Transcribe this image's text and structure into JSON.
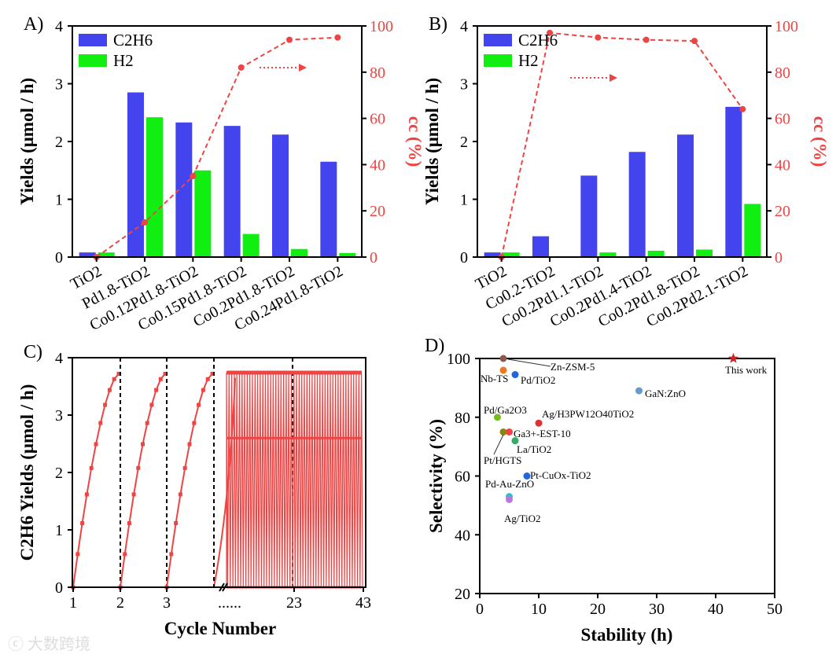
{
  "chart_data": [
    {
      "panel": "A)",
      "type": "bar",
      "ylabel": "Yields (μmol / h)",
      "y2label": "cc (%)",
      "ylim": [
        0,
        4
      ],
      "y2lim": [
        0,
        100
      ],
      "yticks": [
        "0",
        "1",
        "2",
        "3",
        "4"
      ],
      "y2ticks": [
        "0",
        "20",
        "40",
        "60",
        "80",
        "100"
      ],
      "categories": [
        "TiO2",
        "Pd1.8-TiO2",
        "Co0.12Pd1.8-TiO2",
        "Co0.15Pd1.8-TiO2",
        "Co0.2Pd1.8-TiO2",
        "Co0.24Pd1.8-TiO2"
      ],
      "series": [
        {
          "name": "C2H6",
          "color": "#4444ee",
          "values": [
            0.08,
            2.85,
            2.33,
            2.27,
            2.12,
            1.65
          ]
        },
        {
          "name": "H2",
          "color": "#11ee11",
          "values": [
            0.08,
            2.42,
            1.5,
            0.4,
            0.14,
            0.07
          ]
        },
        {
          "name": "cc",
          "type": "line",
          "axis": "right",
          "color": "#ee4444",
          "values": [
            0,
            15,
            35,
            82,
            94,
            95
          ]
        }
      ]
    },
    {
      "panel": "B)",
      "type": "bar",
      "ylabel": "Yields (μmol / h)",
      "y2label": "cc (%)",
      "ylim": [
        0,
        4
      ],
      "y2lim": [
        0,
        100
      ],
      "yticks": [
        "0",
        "1",
        "2",
        "3",
        "4"
      ],
      "y2ticks": [
        "0",
        "20",
        "40",
        "60",
        "80",
        "100"
      ],
      "categories": [
        "TiO2",
        "Co0.2-TiO2",
        "Co0.2Pd1.1-TiO2",
        "Co0.2Pd1.4-TiO2",
        "Co0.2Pd1.8-TiO2",
        "Co0.2Pd2.1-TiO2"
      ],
      "series": [
        {
          "name": "C2H6",
          "color": "#4444ee",
          "values": [
            0.08,
            0.36,
            1.41,
            1.82,
            2.12,
            2.6
          ]
        },
        {
          "name": "H2",
          "color": "#11ee11",
          "values": [
            0.08,
            0,
            0.08,
            0.11,
            0.13,
            0.92
          ]
        },
        {
          "name": "cc",
          "type": "line",
          "axis": "right",
          "color": "#ee4444",
          "values": [
            0,
            97,
            95,
            94,
            93.5,
            64
          ]
        }
      ]
    },
    {
      "panel": "C)",
      "type": "line",
      "xlabel": "Cycle Number",
      "ylabel": "C2H6 Yields (μmol / h)",
      "ylim": [
        0,
        4
      ],
      "yticks": [
        "0",
        "1",
        "2",
        "3",
        "4"
      ],
      "xticks": [
        "1",
        "2",
        "3",
        "......",
        "23",
        "43"
      ],
      "cycle_max": 3.72,
      "upper_cycle_max": 3.74,
      "lower_plateau": 2.6,
      "color": "#ee4444"
    },
    {
      "panel": "D)",
      "type": "scatter",
      "xlabel": "Stability (h)",
      "ylabel": "Selectivity (%)",
      "xlim": [
        0,
        50
      ],
      "ylim": [
        20,
        100
      ],
      "xticks": [
        "0",
        "10",
        "20",
        "30",
        "40",
        "50"
      ],
      "yticks": [
        "20",
        "40",
        "60",
        "80",
        "100"
      ],
      "points": [
        {
          "label": "Zn-ZSM-5",
          "x": 4,
          "y": 100,
          "color": "#8b5a4a"
        },
        {
          "label": "Nb-TS",
          "x": 4,
          "y": 96,
          "color": "#ee7722"
        },
        {
          "label": "Pd/TiO2",
          "x": 6,
          "y": 94.5,
          "color": "#2266dd"
        },
        {
          "label": "GaN:ZnO",
          "x": 27,
          "y": 89,
          "color": "#6699cc"
        },
        {
          "label": "Pd/Ga2O3",
          "x": 3,
          "y": 80,
          "color": "#77bb22"
        },
        {
          "label": "Ag/H3PW12O40TiO2",
          "x": 10,
          "y": 78,
          "color": "#dd3333"
        },
        {
          "label": "Pt/HGTS",
          "x": 4,
          "y": 75,
          "color": "#888811"
        },
        {
          "label": "Ga3+-EST-10",
          "x": 5,
          "y": 75,
          "color": "#ee4444"
        },
        {
          "label": "La/TiO2",
          "x": 6,
          "y": 72,
          "color": "#33aa66"
        },
        {
          "label": "Pt-CuOx-TiO2",
          "x": 8,
          "y": 60,
          "color": "#2266dd"
        },
        {
          "label": "Pd-Au-ZnO",
          "x": 5,
          "y": 53,
          "color": "#33bbcc"
        },
        {
          "label": "Ag/TiO2",
          "x": 5,
          "y": 52,
          "color": "#bb77dd"
        },
        {
          "label": "This work",
          "x": 43,
          "y": 100,
          "color": "#cc2222",
          "marker": "star"
        }
      ]
    }
  ],
  "watermark": "大数跨境"
}
